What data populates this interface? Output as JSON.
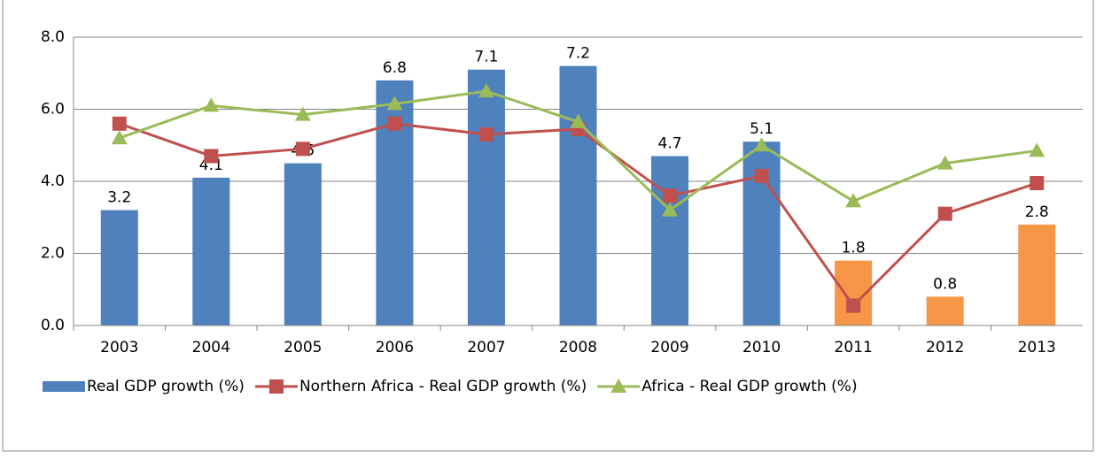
{
  "chart_data": {
    "type": "bar_line",
    "categories": [
      "2003",
      "2004",
      "2005",
      "2006",
      "2007",
      "2008",
      "2009",
      "2010",
      "2011",
      "2012",
      "2013"
    ],
    "series": [
      {
        "name": "Real GDP growth (%)",
        "kind": "bar",
        "color": "#4f81bd",
        "colors": [
          "#4f81bd",
          "#4f81bd",
          "#4f81bd",
          "#4f81bd",
          "#4f81bd",
          "#4f81bd",
          "#4f81bd",
          "#4f81bd",
          "#f79646",
          "#f79646",
          "#f79646"
        ],
        "values": [
          3.2,
          4.1,
          4.5,
          6.8,
          7.1,
          7.2,
          4.7,
          5.1,
          1.8,
          0.8,
          2.8
        ]
      },
      {
        "name": "Northern Africa - Real GDP growth (%)",
        "kind": "line",
        "marker": "square",
        "color": "#c0504d",
        "values": [
          5.6,
          4.7,
          4.9,
          5.6,
          5.3,
          5.45,
          3.6,
          4.15,
          0.55,
          3.1,
          3.95
        ]
      },
      {
        "name": "Africa - Real GDP growth (%)",
        "kind": "line",
        "marker": "triangle",
        "color": "#9bbb59",
        "values": [
          5.2,
          6.1,
          5.85,
          6.15,
          6.5,
          5.65,
          3.2,
          5.0,
          3.45,
          4.5,
          4.85
        ]
      }
    ],
    "ylim": [
      0,
      8
    ],
    "yticks": [
      {
        "value": 0,
        "label": "0.0"
      },
      {
        "value": 2,
        "label": "2.0"
      },
      {
        "value": 4,
        "label": "4.0"
      },
      {
        "value": 6,
        "label": "6.0"
      },
      {
        "value": 8,
        "label": "8.0"
      }
    ],
    "grid": true,
    "legend": "bottom"
  }
}
